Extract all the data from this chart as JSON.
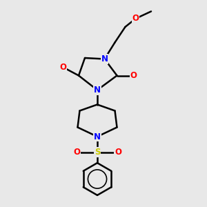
{
  "bg_color": "#e8e8e8",
  "bond_color": "#000000",
  "N_color": "#0000ff",
  "O_color": "#ff0000",
  "S_color": "#cccc00",
  "lw": 1.8,
  "xlim": [
    0,
    10
  ],
  "ylim": [
    0,
    10
  ]
}
